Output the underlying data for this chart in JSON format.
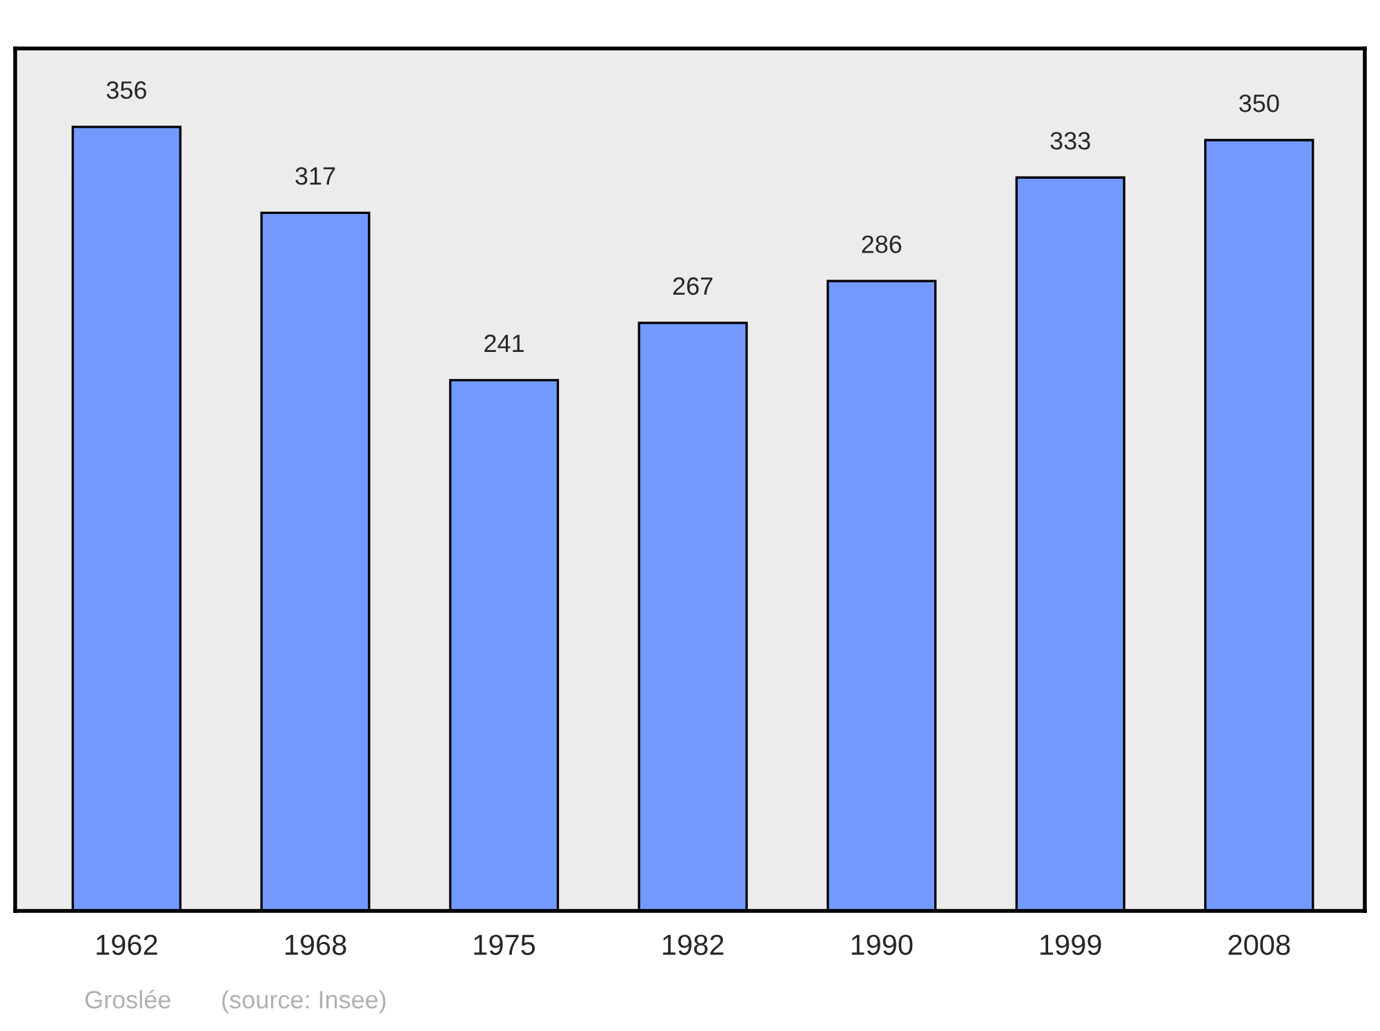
{
  "chart_data": {
    "type": "bar",
    "categories": [
      "1962",
      "1968",
      "1975",
      "1982",
      "1990",
      "1999",
      "2008"
    ],
    "values": [
      356,
      317,
      241,
      267,
      286,
      333,
      350
    ],
    "color": "#7399ff",
    "data_labels": true,
    "grid": false,
    "legend": false,
    "annotations": [
      "Groslée",
      "(source: Insee)"
    ]
  }
}
